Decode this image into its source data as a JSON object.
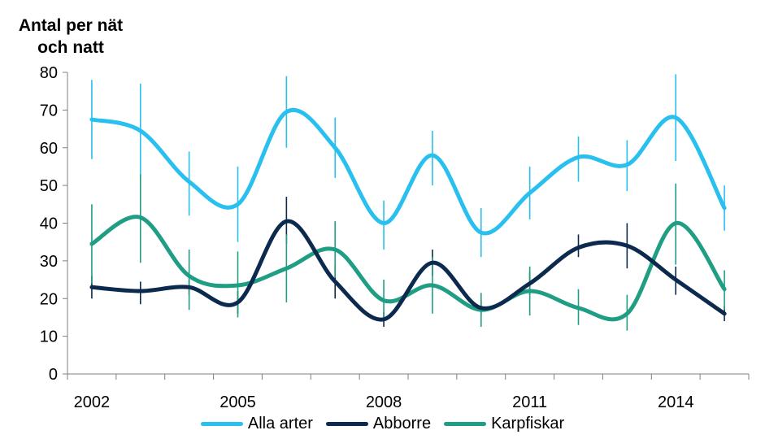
{
  "chart_data": {
    "type": "line",
    "ylabel": [
      "Antal per nät",
      "och natt"
    ],
    "ylim": [
      0,
      80
    ],
    "yticks": [
      0,
      10,
      20,
      30,
      40,
      50,
      60,
      70,
      80
    ],
    "x": [
      2002,
      2003,
      2004,
      2005,
      2006,
      2007,
      2008,
      2009,
      2010,
      2011,
      2012,
      2013,
      2014,
      2015
    ],
    "xtick_labels": [
      "2002",
      "2005",
      "2008",
      "2011",
      "2014"
    ],
    "xtick_label_values": [
      2002,
      2005,
      2008,
      2011,
      2014
    ],
    "grid": false,
    "legend_position": "bottom",
    "series": [
      {
        "name": "Alla arter",
        "color": "#29C0EF",
        "values": [
          67.5,
          64.5,
          51,
          45,
          69.5,
          60,
          40,
          58,
          37.5,
          48,
          57.5,
          55.5,
          68,
          44
        ],
        "err_low": [
          57,
          52,
          42,
          35,
          60,
          52,
          33,
          50,
          31,
          41,
          51,
          48.5,
          56.5,
          38
        ],
        "err_high": [
          78,
          77,
          59,
          55,
          79,
          68,
          46,
          64.5,
          44,
          55,
          63,
          62,
          79.5,
          50
        ]
      },
      {
        "name": "Abborre",
        "color": "#0B2A4E",
        "values": [
          23,
          22,
          23,
          19,
          40.5,
          24.5,
          14.5,
          29.5,
          17.5,
          24,
          33.5,
          34,
          25,
          16
        ],
        "err_low": [
          20,
          18.5,
          21,
          16,
          34.5,
          20,
          12.5,
          26,
          15.5,
          21,
          31,
          28,
          21,
          14
        ],
        "err_high": [
          26,
          24.5,
          25,
          22,
          47,
          29,
          16.5,
          33,
          19.5,
          27,
          37,
          40,
          28.5,
          18
        ]
      },
      {
        "name": "Karpfiskar",
        "color": "#1F9E84",
        "values": [
          34.5,
          41.5,
          26,
          23.5,
          28,
          33,
          19.5,
          23.5,
          17,
          22,
          17.5,
          16,
          40,
          22.5
        ],
        "err_low": [
          24,
          29.5,
          17,
          15,
          19,
          25.5,
          14.5,
          16,
          12.5,
          15.5,
          13,
          11.5,
          29,
          17
        ],
        "err_high": [
          45,
          53,
          33,
          32.5,
          37,
          40.5,
          25,
          31,
          21.5,
          28.5,
          22.5,
          21,
          50.5,
          27.5
        ]
      }
    ]
  }
}
